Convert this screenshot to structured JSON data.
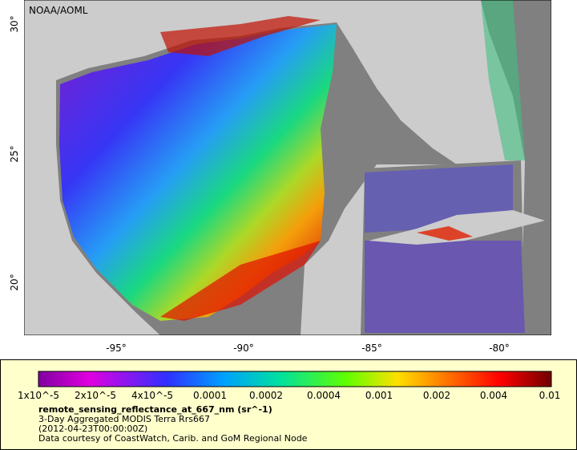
{
  "map": {
    "credit": "NOAA/AOML",
    "lon_labels": [
      "-95°",
      "-90°",
      "-85°",
      "-80°"
    ],
    "lat_labels": [
      "20°",
      "25°",
      "30°"
    ]
  },
  "legend": {
    "scale_labels": [
      "1x10^-5",
      "2x10^-5",
      "4x10^-5",
      "0.0001",
      "0.0002",
      "0.0004",
      "0.001",
      "0.002",
      "0.004",
      "0.01"
    ],
    "variable": "remote_sensing_reflectance_at_667_nm (sr^-1)",
    "lines": [
      "3-Day Aggregated MODIS Terra Rrs667",
      "(2012-04-23T00:00:00Z)",
      "Data courtesy of CoastWatch, Carib. and GoM Regional Node"
    ]
  }
}
